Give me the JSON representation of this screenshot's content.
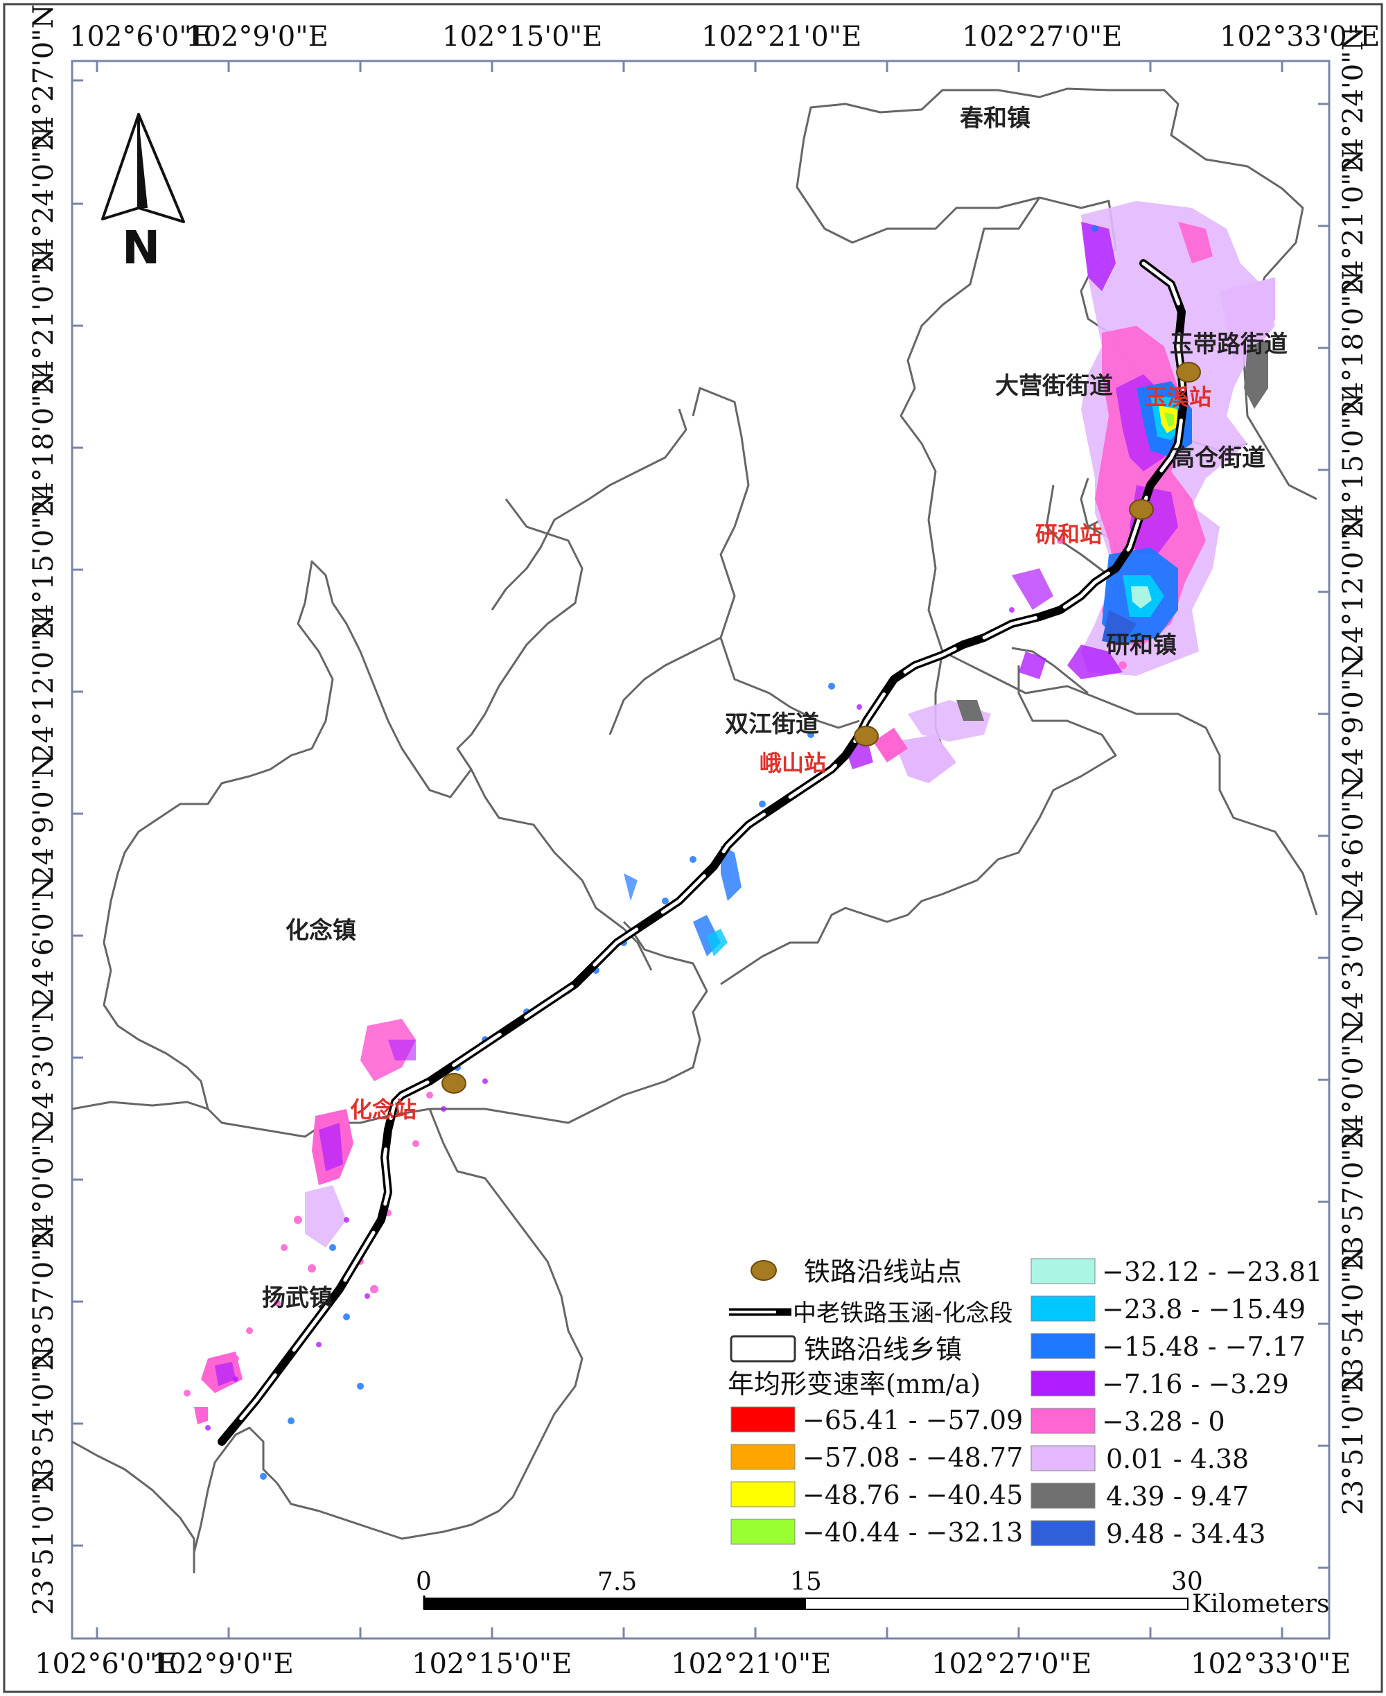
{
  "coordinates": {
    "top_lon_labels": [
      "102°6'0\"E",
      "102°9'0\"E",
      "102°15'0\"E",
      "102°21'0\"E",
      "102°27'0\"E",
      "102°33'0\"E"
    ],
    "bottom_lon_labels": [
      "102°6'0\"E",
      "102°9'0\"E",
      "102°15'0\"E",
      "102°21'0\"E",
      "102°27'0\"E",
      "102°33'0\"E"
    ],
    "left_lat_labels": [
      "24°27'0\"N",
      "24°24'0\"N",
      "24°21'0\"N",
      "24°18'0\"N",
      "24°15'0\"N",
      "24°12'0\"N",
      "24°9'0\"N",
      "24°6'0\"N",
      "24°3'0\"N",
      "24°0'0\"N",
      "23°57'0\"N",
      "23°54'0\"N",
      "23°51'0\"N"
    ],
    "right_lat_labels": [
      "24°24'0\"N",
      "24°21'0\"N",
      "24°18'0\"N",
      "24°15'0\"N",
      "24°12'0\"N",
      "24°9'0\"N",
      "24°6'0\"N",
      "24°3'0\"N",
      "24°0'0\"N",
      "23°57'0\"N",
      "23°54'0\"N",
      "23°51'0\"N"
    ]
  },
  "north_arrow": {
    "label": "N",
    "icon": "north-arrow-icon"
  },
  "towns": [
    "春和镇",
    "玉带路街道",
    "大营街街道",
    "高仓街道",
    "研和镇",
    "双江街道",
    "化念镇",
    "扬武镇"
  ],
  "stations": [
    "玉溪站",
    "研和站",
    "峨山站",
    "化念站"
  ],
  "legend": {
    "station_label": "铁路沿线站点",
    "railway_label": "中老铁路玉涵-化念段",
    "township_label": "铁路沿线乡镇",
    "rate_title": "年均形变速率(mm/a)",
    "classes": [
      {
        "range": "−65.41 - −57.09",
        "color": "#ff0000"
      },
      {
        "range": "−57.08 - −48.77",
        "color": "#ffa500"
      },
      {
        "range": "−48.76 - −40.45",
        "color": "#ffff00"
      },
      {
        "range": "−40.44 - −32.13",
        "color": "#99ff33"
      },
      {
        "range": "−32.12 - −23.81",
        "color": "#aaf5e4"
      },
      {
        "range": "−23.8 - −15.49",
        "color": "#00c8ff"
      },
      {
        "range": "−15.48 - −7.17",
        "color": "#1f78ff"
      },
      {
        "range": "−7.16 - −3.29",
        "color": "#b01eff"
      },
      {
        "range": "−3.28 - 0",
        "color": "#ff66d4"
      },
      {
        "range": "0.01 - 4.38",
        "color": "#e3b8ff"
      },
      {
        "range": "4.39 - 9.47",
        "color": "#707070"
      },
      {
        "range": "9.48 - 34.43",
        "color": "#2f5fd9"
      }
    ]
  },
  "scale_bar": {
    "ticks": [
      "0",
      "7.5",
      "15",
      "30"
    ],
    "unit": "Kilometers"
  }
}
